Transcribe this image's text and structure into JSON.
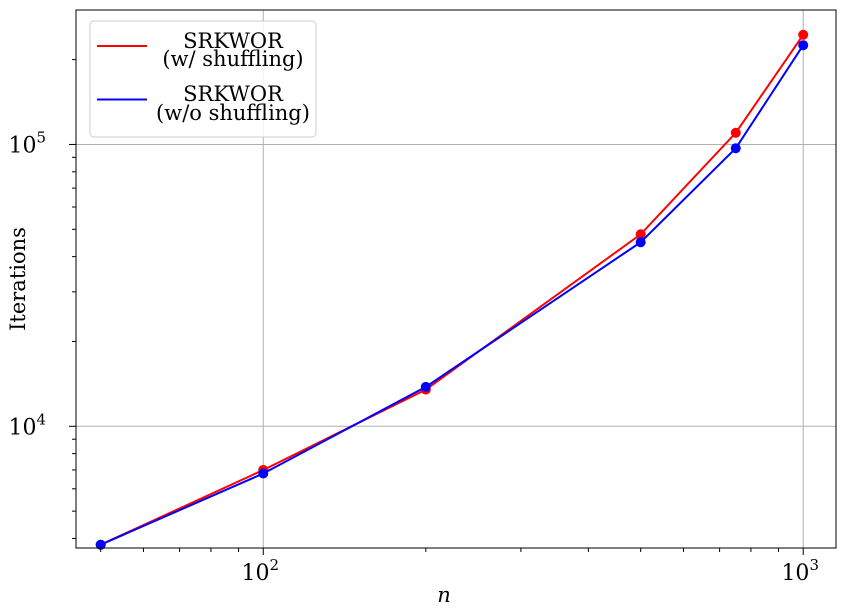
{
  "chart_data": {
    "type": "line",
    "xscale": "log",
    "yscale": "log",
    "xlabel": "n",
    "ylabel": "Iterations",
    "xlim": [
      45,
      1150
    ],
    "ylim": [
      3700,
      300000
    ],
    "grid": true,
    "legend_position": "top-left",
    "x_ticks": [
      {
        "value": 100,
        "base": "10",
        "exp": "2"
      },
      {
        "value": 1000,
        "base": "10",
        "exp": "3"
      }
    ],
    "y_ticks": [
      {
        "value": 10000,
        "base": "10",
        "exp": "4"
      },
      {
        "value": 100000,
        "base": "10",
        "exp": "5"
      }
    ],
    "series": [
      {
        "name_lines": [
          "SRKWOR",
          "(w/ shuffling)"
        ],
        "color": "#ff0000",
        "x": [
          50,
          100,
          200,
          500,
          750,
          1000
        ],
        "y": [
          3800,
          7000,
          13500,
          48000,
          110000,
          245000
        ]
      },
      {
        "name_lines": [
          "SRKWOR",
          "(w/o shuffling)"
        ],
        "color": "#0000ff",
        "x": [
          50,
          100,
          200,
          500,
          750,
          1000
        ],
        "y": [
          3800,
          6800,
          13800,
          45000,
          97000,
          225000
        ]
      }
    ]
  }
}
